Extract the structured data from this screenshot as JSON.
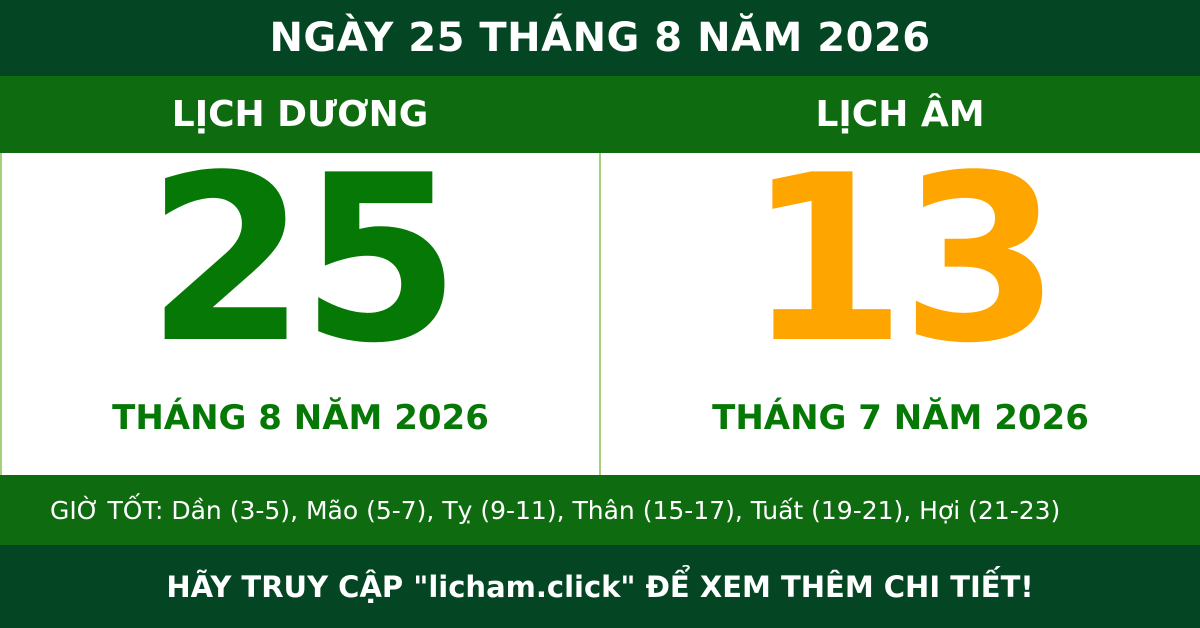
{
  "header": {
    "title": "NGÀY 25 THÁNG 8 NĂM 2026"
  },
  "solar": {
    "label": "LỊCH DƯƠNG",
    "day": "25",
    "month_year": "THÁNG 8 NĂM 2026",
    "color": "#067806"
  },
  "lunar": {
    "label": "LỊCH ÂM",
    "day": "13",
    "month_year": "THÁNG 7 NĂM 2026",
    "color": "#ffa500"
  },
  "good_hours": "GIỜ TỐT: Dần (3-5), Mão (5-7), Tỵ (9-11), Thân (15-17), Tuất (19-21), Hợi (21-23)",
  "footer": {
    "cta": "HÃY TRUY CẬP \"licham.click\" ĐỂ XEM THÊM CHI TIẾT!"
  }
}
